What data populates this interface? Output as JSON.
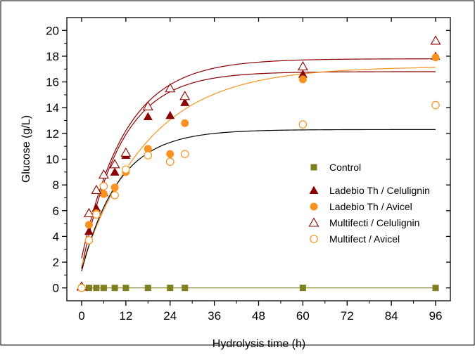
{
  "chart_data": {
    "type": "scatter",
    "xlabel": "Hydrolysis time (h)",
    "ylabel": "Glucose (g/L)",
    "xlim": [
      -4,
      100
    ],
    "ylim": [
      -1,
      21
    ],
    "xticks": [
      0,
      12,
      24,
      36,
      48,
      60,
      72,
      84,
      96
    ],
    "yticks": [
      0,
      2,
      4,
      6,
      8,
      10,
      12,
      14,
      16,
      18,
      20
    ],
    "xtick_labels": [
      "0",
      "12",
      "24",
      "36",
      "48",
      "60",
      "72",
      "84",
      "96"
    ],
    "ytick_labels": [
      "0",
      "2",
      "4",
      "6",
      "8",
      "10",
      "12",
      "14",
      "16",
      "18",
      "20"
    ],
    "grid": false,
    "legend_position": "center-right",
    "series": [
      {
        "name": "Control",
        "marker": "square-filled",
        "color": "#7f7f1f",
        "x": [
          0,
          2,
          4,
          6,
          9,
          12,
          18,
          24,
          28,
          60,
          96
        ],
        "y": [
          0,
          0,
          0,
          0,
          0,
          0,
          0,
          0,
          0,
          0,
          0
        ],
        "fit": {
          "model": "constant",
          "params": {
            "c": 0
          }
        }
      },
      {
        "name": "Ladebio Th / Celulignin",
        "marker": "triangle-filled",
        "color": "#8b0000",
        "x": [
          2,
          4,
          6,
          9,
          12,
          18,
          24,
          28,
          60,
          96
        ],
        "y": [
          4.4,
          6.2,
          7.4,
          9.0,
          10.3,
          13.3,
          13.4,
          14.4,
          16.6,
          18.0
        ],
        "fit": {
          "model": "exponential_rise",
          "params": {
            "a": 1.5,
            "b": 16.8,
            "k": 0.095
          }
        }
      },
      {
        "name": "Ladebio Th / Avicel",
        "marker": "circle-filled",
        "color": "#f7931e",
        "x": [
          0,
          2,
          4,
          6,
          9,
          12,
          18,
          24,
          28,
          60,
          96
        ],
        "y": [
          0.0,
          4.9,
          5.8,
          7.3,
          7.8,
          9.0,
          10.8,
          10.4,
          12.8,
          16.2,
          17.9
        ],
        "fit": {
          "model": "exponential_rise",
          "params": {
            "a": 1.7,
            "b": 17.2,
            "k": 0.055
          }
        }
      },
      {
        "name": "Multifecti / Celulignin",
        "marker": "triangle-open",
        "color": "#8b0000",
        "x": [
          0,
          2,
          4,
          6,
          9,
          12,
          18,
          24,
          28,
          60,
          96
        ],
        "y": [
          0.1,
          5.8,
          7.6,
          8.8,
          9.6,
          10.5,
          14.1,
          15.5,
          14.9,
          17.2,
          19.2
        ],
        "fit": {
          "model": "exponential_rise",
          "params": {
            "a": 2.3,
            "b": 17.8,
            "k": 0.085
          }
        }
      },
      {
        "name": "Multifect / Avicel",
        "marker": "circle-open",
        "color": "#f7931e",
        "x": [
          0,
          2,
          4,
          6,
          9,
          12,
          18,
          24,
          28,
          60,
          96
        ],
        "y": [
          0.0,
          3.7,
          5.7,
          7.9,
          7.2,
          9.2,
          10.3,
          9.8,
          10.4,
          12.7,
          14.2
        ],
        "fit": {
          "model": "exponential_rise",
          "params": {
            "a": 1.3,
            "b": 12.3,
            "k": 0.1
          },
          "curve_color": "#000000"
        }
      }
    ]
  }
}
